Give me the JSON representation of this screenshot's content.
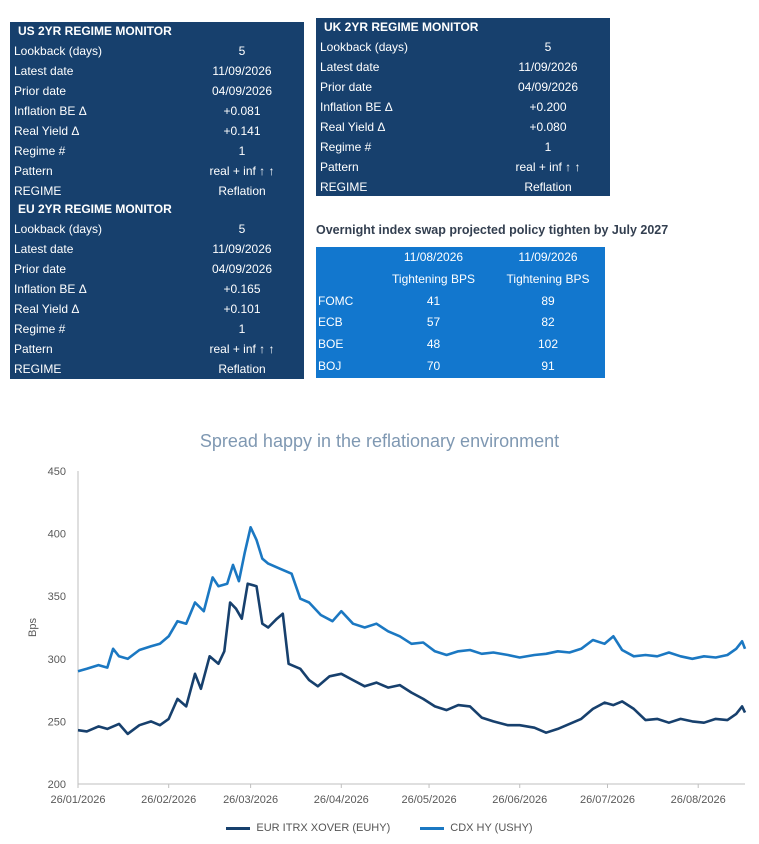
{
  "monitors": {
    "us": {
      "title": "US 2YR REGIME MONITOR",
      "rows": [
        {
          "label": "Lookback (days)",
          "value": "5"
        },
        {
          "label": "Latest date",
          "value": "11/09/2026"
        },
        {
          "label": "Prior date",
          "value": "04/09/2026"
        },
        {
          "label": "Inflation BE Δ",
          "value": "+0.081"
        },
        {
          "label": "Real Yield Δ",
          "value": "+0.141"
        },
        {
          "label": "Regime #",
          "value": "1"
        },
        {
          "label": "Pattern",
          "value": "real + inf ↑ ↑"
        },
        {
          "label": "REGIME",
          "value": "Reflation"
        }
      ]
    },
    "uk": {
      "title": "UK 2YR REGIME MONITOR",
      "rows": [
        {
          "label": "Lookback (days)",
          "value": "5"
        },
        {
          "label": "Latest date",
          "value": "11/09/2026"
        },
        {
          "label": "Prior date",
          "value": "04/09/2026"
        },
        {
          "label": "Inflation BE Δ",
          "value": "+0.200"
        },
        {
          "label": "Real Yield Δ",
          "value": "+0.080"
        },
        {
          "label": "Regime #",
          "value": "1"
        },
        {
          "label": "Pattern",
          "value": "real + inf ↑ ↑"
        },
        {
          "label": "REGIME",
          "value": "Reflation"
        }
      ]
    },
    "eu": {
      "title": "EU 2YR REGIME MONITOR",
      "rows": [
        {
          "label": "Lookback (days)",
          "value": "5"
        },
        {
          "label": "Latest date",
          "value": "11/09/2026"
        },
        {
          "label": "Prior date",
          "value": "04/09/2026"
        },
        {
          "label": "Inflation BE Δ",
          "value": "+0.165"
        },
        {
          "label": "Real Yield Δ",
          "value": "+0.101"
        },
        {
          "label": "Regime #",
          "value": "1"
        },
        {
          "label": "Pattern",
          "value": "real + inf ↑ ↑"
        },
        {
          "label": "REGIME",
          "value": "Reflation"
        }
      ]
    }
  },
  "ois": {
    "title": "Overnight index swap projected policy tighten by July 2027",
    "header_dates": [
      "11/08/2026",
      "11/09/2026"
    ],
    "header_units": [
      "Tightening BPS",
      "Tightening BPS"
    ],
    "rows": [
      {
        "bank": "FOMC",
        "v1": "41",
        "v2": "89"
      },
      {
        "bank": "ECB",
        "v1": "57",
        "v2": "82"
      },
      {
        "bank": "BOE",
        "v1": "48",
        "v2": "102"
      },
      {
        "bank": "BOJ",
        "v1": "70",
        "v2": "91"
      }
    ]
  },
  "colors": {
    "panel_bg": "#17406d",
    "ois_bg": "#1277ce",
    "euhy": "#17406d",
    "ushy": "#1b78c2"
  },
  "chart_data": {
    "type": "line",
    "title": "Spread happy in the reflationary environment",
    "xlabel": "",
    "ylabel": "Bps",
    "ylim": [
      200,
      450
    ],
    "yticks": [
      "200",
      "250",
      "300",
      "350",
      "400",
      "450"
    ],
    "xlim": [
      "2026-01-26",
      "2026-09-11"
    ],
    "xticks": [
      {
        "date": "2026-01-26",
        "label": "26/01/2026"
      },
      {
        "date": "2026-02-26",
        "label": "26/02/2026"
      },
      {
        "date": "2026-03-26",
        "label": "26/03/2026"
      },
      {
        "date": "2026-04-26",
        "label": "26/04/2026"
      },
      {
        "date": "2026-05-26",
        "label": "26/05/2026"
      },
      {
        "date": "2026-06-26",
        "label": "26/06/2026"
      },
      {
        "date": "2026-07-26",
        "label": "26/07/2026"
      },
      {
        "date": "2026-08-26",
        "label": "26/08/2026"
      }
    ],
    "grid": false,
    "legend_position": "bottom",
    "series": [
      {
        "name": "EUR ITRX XOVER (EUHY)",
        "points": [
          [
            "2026-01-26",
            243
          ],
          [
            "2026-01-29",
            242
          ],
          [
            "2026-02-02",
            246
          ],
          [
            "2026-02-05",
            244
          ],
          [
            "2026-02-09",
            248
          ],
          [
            "2026-02-12",
            240
          ],
          [
            "2026-02-16",
            247
          ],
          [
            "2026-02-20",
            250
          ],
          [
            "2026-02-23",
            247
          ],
          [
            "2026-02-26",
            252
          ],
          [
            "2026-03-01",
            268
          ],
          [
            "2026-03-04",
            262
          ],
          [
            "2026-03-07",
            288
          ],
          [
            "2026-03-09",
            276
          ],
          [
            "2026-03-12",
            302
          ],
          [
            "2026-03-15",
            296
          ],
          [
            "2026-03-17",
            306
          ],
          [
            "2026-03-19",
            345
          ],
          [
            "2026-03-21",
            340
          ],
          [
            "2026-03-23",
            332
          ],
          [
            "2026-03-25",
            360
          ],
          [
            "2026-03-28",
            358
          ],
          [
            "2026-03-30",
            328
          ],
          [
            "2026-04-01",
            325
          ],
          [
            "2026-04-04",
            332
          ],
          [
            "2026-04-06",
            336
          ],
          [
            "2026-04-08",
            296
          ],
          [
            "2026-04-12",
            292
          ],
          [
            "2026-04-15",
            283
          ],
          [
            "2026-04-18",
            278
          ],
          [
            "2026-04-22",
            286
          ],
          [
            "2026-04-26",
            288
          ],
          [
            "2026-04-30",
            283
          ],
          [
            "2026-05-04",
            278
          ],
          [
            "2026-05-08",
            281
          ],
          [
            "2026-05-12",
            277
          ],
          [
            "2026-05-16",
            279
          ],
          [
            "2026-05-20",
            273
          ],
          [
            "2026-05-24",
            268
          ],
          [
            "2026-05-28",
            262
          ],
          [
            "2026-06-01",
            259
          ],
          [
            "2026-06-05",
            263
          ],
          [
            "2026-06-09",
            262
          ],
          [
            "2026-06-13",
            253
          ],
          [
            "2026-06-17",
            250
          ],
          [
            "2026-06-22",
            247
          ],
          [
            "2026-06-26",
            247
          ],
          [
            "2026-07-01",
            245
          ],
          [
            "2026-07-05",
            241
          ],
          [
            "2026-07-09",
            244
          ],
          [
            "2026-07-13",
            248
          ],
          [
            "2026-07-17",
            252
          ],
          [
            "2026-07-21",
            260
          ],
          [
            "2026-07-25",
            265
          ],
          [
            "2026-07-28",
            263
          ],
          [
            "2026-07-31",
            266
          ],
          [
            "2026-08-04",
            260
          ],
          [
            "2026-08-08",
            251
          ],
          [
            "2026-08-12",
            252
          ],
          [
            "2026-08-16",
            249
          ],
          [
            "2026-08-20",
            252
          ],
          [
            "2026-08-24",
            250
          ],
          [
            "2026-08-28",
            249
          ],
          [
            "2026-09-01",
            252
          ],
          [
            "2026-09-05",
            251
          ],
          [
            "2026-09-08",
            256
          ],
          [
            "2026-09-10",
            262
          ],
          [
            "2026-09-11",
            257
          ]
        ]
      },
      {
        "name": "CDX HY (USHY)",
        "points": [
          [
            "2026-01-26",
            290
          ],
          [
            "2026-01-29",
            292
          ],
          [
            "2026-02-02",
            295
          ],
          [
            "2026-02-05",
            293
          ],
          [
            "2026-02-07",
            308
          ],
          [
            "2026-02-09",
            302
          ],
          [
            "2026-02-12",
            300
          ],
          [
            "2026-02-16",
            307
          ],
          [
            "2026-02-20",
            310
          ],
          [
            "2026-02-23",
            312
          ],
          [
            "2026-02-26",
            318
          ],
          [
            "2026-03-01",
            330
          ],
          [
            "2026-03-04",
            328
          ],
          [
            "2026-03-07",
            345
          ],
          [
            "2026-03-10",
            338
          ],
          [
            "2026-03-13",
            365
          ],
          [
            "2026-03-15",
            358
          ],
          [
            "2026-03-18",
            360
          ],
          [
            "2026-03-20",
            375
          ],
          [
            "2026-03-22",
            362
          ],
          [
            "2026-03-24",
            385
          ],
          [
            "2026-03-26",
            405
          ],
          [
            "2026-03-28",
            395
          ],
          [
            "2026-03-30",
            380
          ],
          [
            "2026-04-01",
            376
          ],
          [
            "2026-04-05",
            372
          ],
          [
            "2026-04-09",
            368
          ],
          [
            "2026-04-12",
            348
          ],
          [
            "2026-04-15",
            345
          ],
          [
            "2026-04-19",
            335
          ],
          [
            "2026-04-23",
            330
          ],
          [
            "2026-04-26",
            338
          ],
          [
            "2026-04-30",
            328
          ],
          [
            "2026-05-04",
            325
          ],
          [
            "2026-05-08",
            328
          ],
          [
            "2026-05-12",
            322
          ],
          [
            "2026-05-16",
            318
          ],
          [
            "2026-05-20",
            312
          ],
          [
            "2026-05-24",
            313
          ],
          [
            "2026-05-28",
            306
          ],
          [
            "2026-06-01",
            303
          ],
          [
            "2026-06-05",
            306
          ],
          [
            "2026-06-09",
            307
          ],
          [
            "2026-06-13",
            304
          ],
          [
            "2026-06-17",
            305
          ],
          [
            "2026-06-22",
            303
          ],
          [
            "2026-06-26",
            301
          ],
          [
            "2026-07-01",
            303
          ],
          [
            "2026-07-05",
            304
          ],
          [
            "2026-07-09",
            306
          ],
          [
            "2026-07-13",
            305
          ],
          [
            "2026-07-17",
            308
          ],
          [
            "2026-07-21",
            315
          ],
          [
            "2026-07-25",
            312
          ],
          [
            "2026-07-28",
            318
          ],
          [
            "2026-07-31",
            307
          ],
          [
            "2026-08-04",
            302
          ],
          [
            "2026-08-08",
            303
          ],
          [
            "2026-08-12",
            302
          ],
          [
            "2026-08-16",
            305
          ],
          [
            "2026-08-20",
            302
          ],
          [
            "2026-08-24",
            300
          ],
          [
            "2026-08-28",
            302
          ],
          [
            "2026-09-01",
            301
          ],
          [
            "2026-09-05",
            303
          ],
          [
            "2026-09-08",
            308
          ],
          [
            "2026-09-10",
            314
          ],
          [
            "2026-09-11",
            308
          ]
        ]
      }
    ]
  }
}
